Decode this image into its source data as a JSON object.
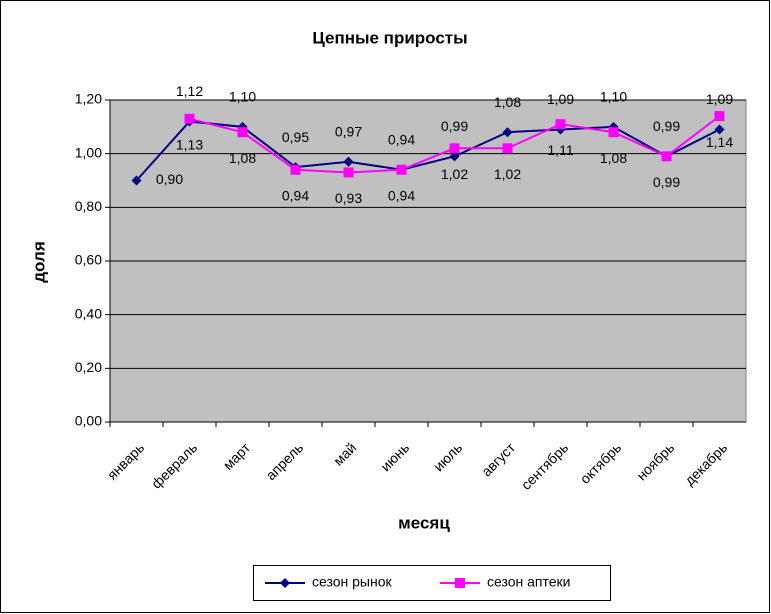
{
  "chart_data": {
    "type": "line",
    "title": "Цепные приросты",
    "x_label": "месяц",
    "y_label": "доля",
    "categories": [
      "январь",
      "февраль",
      "март",
      "апрель",
      "май",
      "июнь",
      "июль",
      "август",
      "сентябрь",
      "октябрь",
      "ноябрь",
      "декабрь"
    ],
    "series": [
      {
        "name": "сезон рынок",
        "color": "#000080",
        "marker": "diamond",
        "values": [
          0.9,
          1.12,
          1.1,
          0.95,
          0.97,
          0.94,
          0.99,
          1.08,
          1.09,
          1.1,
          0.99,
          1.09
        ],
        "value_labels": [
          "0,90",
          "1,12",
          "1,10",
          "0,95",
          "0,97",
          "0,94",
          "0,99",
          "1,08",
          "1,09",
          "1,10",
          "0,99",
          "1,09"
        ]
      },
      {
        "name": "сезон аптеки",
        "color": "#FF00FF",
        "marker": "square",
        "values": [
          null,
          1.13,
          1.08,
          0.94,
          0.93,
          0.94,
          1.02,
          1.02,
          1.11,
          1.08,
          0.99,
          1.14
        ],
        "value_labels": [
          null,
          "1,13",
          "1,08",
          "0,94",
          "0,93",
          "0,94",
          "1,02",
          "1,02",
          "1,11",
          "1,08",
          "0,99",
          "1,14"
        ]
      }
    ],
    "ylim": [
      0,
      1.2
    ],
    "yticks": [
      {
        "value": 0,
        "label": "0,00"
      },
      {
        "value": 0.2,
        "label": "0,20"
      },
      {
        "value": 0.4,
        "label": "0,40"
      },
      {
        "value": 0.6,
        "label": "0,60"
      },
      {
        "value": 0.8,
        "label": "0,80"
      },
      {
        "value": 1.0,
        "label": "1,00"
      },
      {
        "value": 1.2,
        "label": "1,20"
      }
    ],
    "grid": true,
    "legend": "bottom"
  }
}
